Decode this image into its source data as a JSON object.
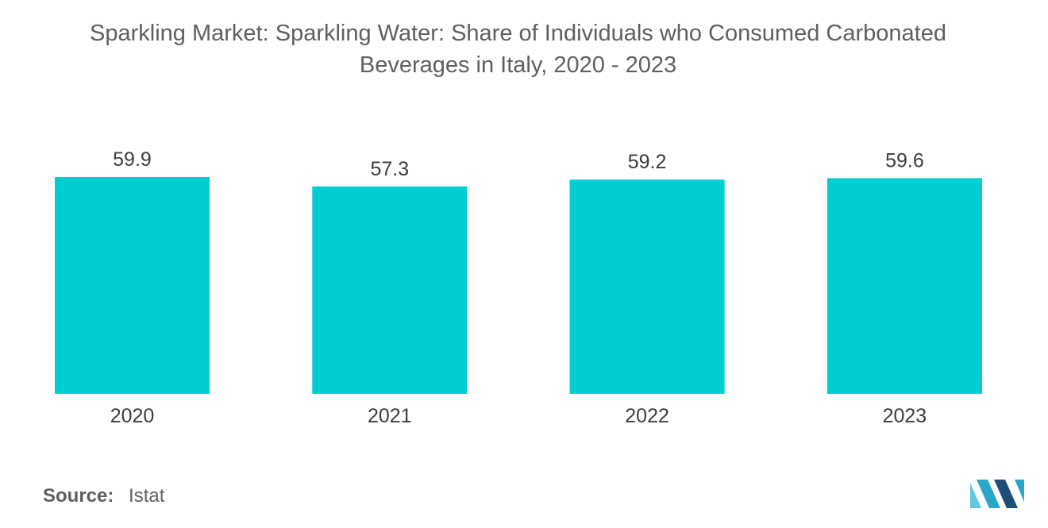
{
  "chart_data": {
    "type": "bar",
    "title": "Sparkling Market: Sparkling Water: Share of Individuals who Consumed Carbonated Beverages in Italy, 2020 - 2023",
    "categories": [
      "2020",
      "2021",
      "2022",
      "2023"
    ],
    "values": [
      59.9,
      57.3,
      59.2,
      59.6
    ],
    "value_labels": [
      "59.9",
      "57.3",
      "59.2",
      "59.6"
    ],
    "xlabel": "",
    "ylabel": "",
    "ylim": [
      0,
      59.9
    ],
    "grid": false,
    "legend": "none",
    "bar_color": "#00cdd0"
  },
  "source": {
    "label": "Source:",
    "value": "Istat"
  },
  "logo": {
    "name": "mordor-intelligence-logo",
    "colors": [
      "#1f4e79",
      "#2aa6c9",
      "#5ec9dd"
    ]
  }
}
